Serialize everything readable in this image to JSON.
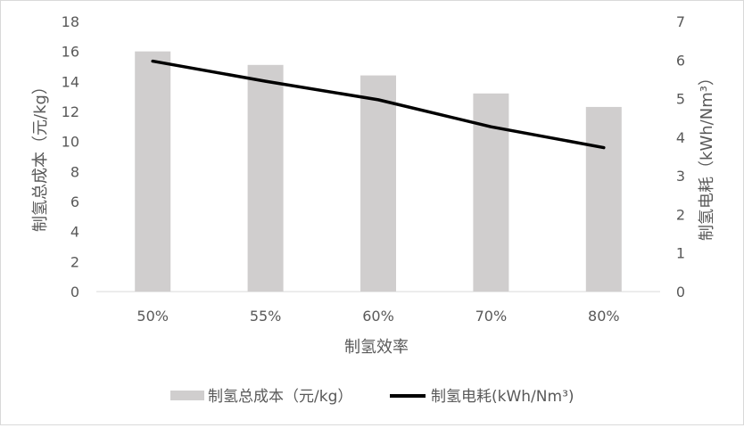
{
  "chart_data": {
    "type": "bar+line",
    "categories": [
      "50%",
      "55%",
      "60%",
      "70%",
      "80%"
    ],
    "series": [
      {
        "name": "制氢总成本（元/kg）",
        "type": "bar",
        "axis": "left",
        "values": [
          16.0,
          15.1,
          14.4,
          13.2,
          12.3
        ],
        "color": "#d0cece"
      },
      {
        "name": "制氢电耗(kWh/Nm³)",
        "type": "line",
        "axis": "right",
        "values": [
          5.97,
          5.45,
          4.97,
          4.27,
          3.73
        ],
        "color": "#000000"
      }
    ],
    "xlabel": "制氢效率",
    "ylabel": "制氢总成本（元/kg）",
    "y2label": "制氢电耗（kWh/Nm³）",
    "ylim": [
      0,
      18
    ],
    "y2lim": [
      0,
      7
    ],
    "yticks": [
      "0",
      "2",
      "4",
      "6",
      "8",
      "10",
      "12",
      "14",
      "16",
      "18"
    ],
    "y2ticks": [
      "0",
      "1",
      "2",
      "3",
      "4",
      "5",
      "6",
      "7"
    ],
    "grid": false,
    "legend": "bottom"
  }
}
